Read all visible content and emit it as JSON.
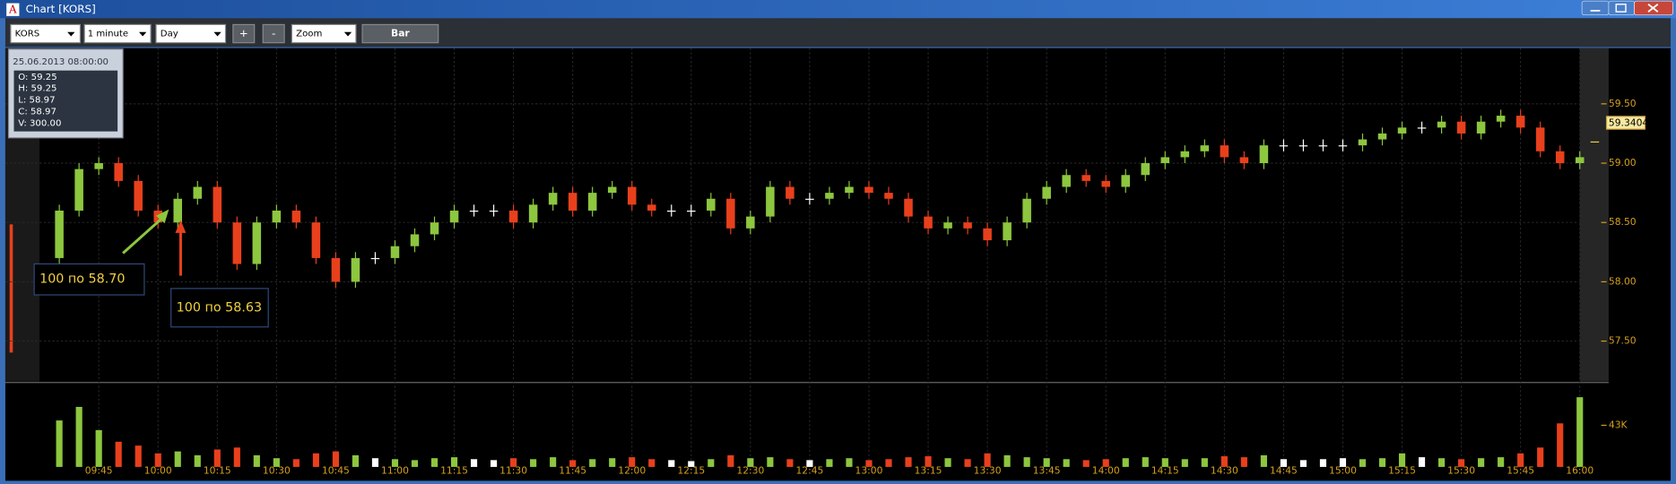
{
  "window": {
    "icon": "A",
    "title": "Chart [KORS]"
  },
  "toolbar": {
    "symbol": "KORS",
    "interval": "1 minute",
    "range": "Day",
    "zoom_in": "+",
    "zoom_out": "-",
    "tool": "Zoom",
    "style": "Bar"
  },
  "chart_data": {
    "type": "candlestick",
    "categories": [
      null,
      null,
      "09:45",
      null,
      null,
      "10:00",
      null,
      null,
      "10:15",
      null,
      null,
      "10:30",
      null,
      null,
      "10:45",
      null,
      null,
      "11:00",
      null,
      null,
      "11:15",
      null,
      null,
      "11:30",
      null,
      null,
      "11:45",
      null,
      null,
      "12:00",
      null,
      null,
      "12:15",
      null,
      null,
      "12:30",
      null,
      null,
      "12:45",
      null,
      null,
      "13:00",
      null,
      null,
      "13:15",
      null,
      null,
      "13:30",
      null,
      null,
      "13:45",
      null,
      null,
      "14:00",
      null,
      null,
      "14:15",
      null,
      null,
      "14:30",
      null,
      null,
      "14:45",
      null,
      null,
      "15:00",
      null,
      null,
      "15:15",
      null,
      null,
      "15:30",
      null,
      null,
      "15:45",
      null,
      null,
      "16:00"
    ],
    "open": [
      58.2,
      58.6,
      58.95,
      59.0,
      58.85,
      58.6,
      58.5,
      58.7,
      58.8,
      58.5,
      58.15,
      58.5,
      58.6,
      58.5,
      58.2,
      58.0,
      58.2,
      58.2,
      58.3,
      58.4,
      58.5,
      58.6,
      58.6,
      58.6,
      58.5,
      58.65,
      58.75,
      58.6,
      58.75,
      58.8,
      58.65,
      58.6,
      58.6,
      58.6,
      58.7,
      58.45,
      58.55,
      58.8,
      58.7,
      58.7,
      58.75,
      58.8,
      58.75,
      58.7,
      58.55,
      58.45,
      58.5,
      58.45,
      58.35,
      58.5,
      58.7,
      58.8,
      58.9,
      58.85,
      58.8,
      58.9,
      59.0,
      59.05,
      59.1,
      59.15,
      59.05,
      59.0,
      59.15,
      59.15,
      59.15,
      59.15,
      59.15,
      59.2,
      59.25,
      59.3,
      59.3,
      59.35,
      59.25,
      59.35,
      59.4,
      59.3,
      59.1,
      59.0
    ],
    "high": [
      58.65,
      59.0,
      59.05,
      59.05,
      58.9,
      58.65,
      58.75,
      58.85,
      58.85,
      58.55,
      58.55,
      58.65,
      58.65,
      58.55,
      58.25,
      58.25,
      58.25,
      58.35,
      58.45,
      58.55,
      58.65,
      58.65,
      58.65,
      58.65,
      58.7,
      58.8,
      58.8,
      58.8,
      58.85,
      58.85,
      58.7,
      58.65,
      58.65,
      58.75,
      58.75,
      58.6,
      58.85,
      58.85,
      58.75,
      58.8,
      58.85,
      58.85,
      58.8,
      58.75,
      58.6,
      58.55,
      58.55,
      58.5,
      58.55,
      58.75,
      58.85,
      58.95,
      58.95,
      58.9,
      58.95,
      59.05,
      59.1,
      59.15,
      59.2,
      59.2,
      59.1,
      59.2,
      59.2,
      59.2,
      59.2,
      59.2,
      59.25,
      59.3,
      59.35,
      59.35,
      59.4,
      59.4,
      59.4,
      59.45,
      59.45,
      59.35,
      59.15,
      59.1
    ],
    "low": [
      58.15,
      58.55,
      58.9,
      58.8,
      58.55,
      58.45,
      58.45,
      58.65,
      58.45,
      58.1,
      58.1,
      58.45,
      58.45,
      58.15,
      57.95,
      57.95,
      58.15,
      58.15,
      58.25,
      58.35,
      58.45,
      58.55,
      58.55,
      58.45,
      58.45,
      58.6,
      58.55,
      58.55,
      58.7,
      58.6,
      58.55,
      58.55,
      58.55,
      58.55,
      58.4,
      58.4,
      58.5,
      58.65,
      58.65,
      58.65,
      58.7,
      58.7,
      58.65,
      58.5,
      58.4,
      58.4,
      58.4,
      58.3,
      58.3,
      58.45,
      58.65,
      58.75,
      58.8,
      58.75,
      58.75,
      58.85,
      58.95,
      59.0,
      59.05,
      59.0,
      58.95,
      58.95,
      59.1,
      59.1,
      59.1,
      59.1,
      59.1,
      59.15,
      59.2,
      59.25,
      59.25,
      59.2,
      59.2,
      59.3,
      59.25,
      59.05,
      58.95,
      58.95
    ],
    "close": [
      58.6,
      58.95,
      59.0,
      58.85,
      58.6,
      58.5,
      58.7,
      58.8,
      58.5,
      58.15,
      58.5,
      58.6,
      58.5,
      58.2,
      58.0,
      58.2,
      58.2,
      58.3,
      58.4,
      58.5,
      58.6,
      58.6,
      58.6,
      58.5,
      58.65,
      58.75,
      58.6,
      58.75,
      58.8,
      58.65,
      58.6,
      58.6,
      58.6,
      58.7,
      58.45,
      58.55,
      58.8,
      58.7,
      58.7,
      58.75,
      58.8,
      58.75,
      58.7,
      58.55,
      58.45,
      58.5,
      58.45,
      58.35,
      58.5,
      58.7,
      58.8,
      58.9,
      58.85,
      58.8,
      58.9,
      59.0,
      59.05,
      59.1,
      59.15,
      59.05,
      59.0,
      59.15,
      59.15,
      59.15,
      59.15,
      59.15,
      59.2,
      59.25,
      59.3,
      59.3,
      59.35,
      59.25,
      59.35,
      59.4,
      59.3,
      59.1,
      59.0,
      59.05
    ],
    "up_color": "#8dc63f",
    "down_color": "#e8401c",
    "flat_color": "#ffffff",
    "ylim": [
      57.16,
      59.97
    ],
    "yticks": [
      {
        "value": 57.5,
        "label": "57.50"
      },
      {
        "value": 58,
        "label": "58.00"
      },
      {
        "value": 58.5,
        "label": "58.50"
      },
      {
        "value": 59,
        "label": "59.00"
      },
      {
        "value": 59.5,
        "label": "59.50"
      }
    ],
    "grid": true,
    "last_price": 59.3404,
    "volume": {
      "values": [
        48000,
        62000,
        38000,
        26000,
        22000,
        14000,
        16000,
        12000,
        18000,
        20000,
        12000,
        9000,
        8000,
        14000,
        16000,
        12000,
        9000,
        8000,
        7000,
        9000,
        10000,
        8000,
        7000,
        9000,
        8000,
        10000,
        7000,
        8000,
        9000,
        10000,
        8000,
        7000,
        6000,
        8000,
        12000,
        9000,
        10000,
        8000,
        7000,
        8000,
        9000,
        7000,
        8000,
        10000,
        11000,
        9000,
        8000,
        14000,
        12000,
        10000,
        9000,
        8000,
        7000,
        8000,
        9000,
        10000,
        9000,
        8000,
        9000,
        11000,
        10000,
        12000,
        8000,
        7000,
        8000,
        9000,
        8000,
        9000,
        14000,
        10000,
        9000,
        8000,
        9000,
        10000,
        14000,
        20000,
        45000,
        72000
      ],
      "ylim": [
        0,
        85000
      ],
      "yticks": [
        {
          "value": 43000,
          "label": "43K"
        }
      ]
    },
    "info_box": {
      "datetime": "25.06.2013 08:00:00",
      "lines": [
        "O: 59.25",
        "H: 59.25",
        "L: 58.97",
        "C: 58.97",
        "V: 300.00"
      ]
    },
    "annotations": [
      "100 по 58.70",
      "100 по 58.63"
    ]
  }
}
